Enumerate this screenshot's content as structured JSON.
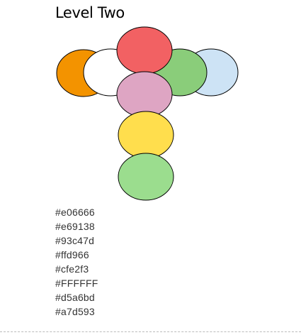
{
  "title": "Level Two",
  "colors": [
    "#e06666",
    "#e69138",
    "#93c47d",
    "#ffd966",
    "#cfe2f3",
    "#FFFFFF",
    "#d5a6bd",
    "#a7d593"
  ],
  "figure_fills": {
    "top": "#f26163",
    "left_outer": "#f39300",
    "left_inner": "#ffffff",
    "right_inner": "#8acd7a",
    "right_outer": "#cde3f5",
    "center": "#dea5c3",
    "lower": "#ffde4d",
    "bottom": "#9bdd8e"
  }
}
